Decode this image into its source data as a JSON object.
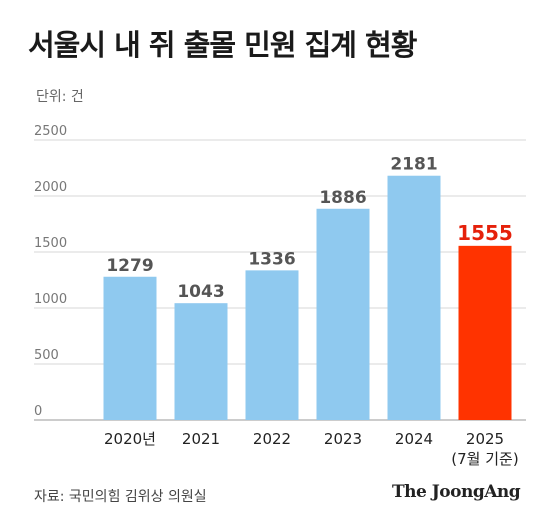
{
  "header": {
    "title": "서울시 내 쥐 출몰 민원 집계 현황",
    "unit": "단위: 건"
  },
  "footer": {
    "source": "자료: 국민의힘 김위상 의원실",
    "brand": "The JoongAng"
  },
  "colors": {
    "bar": "#8fc9ef",
    "highlight": "#ff3300",
    "highlight_text": "#e5210b"
  },
  "chart_data": {
    "type": "bar",
    "categories": [
      "2020년",
      "2021",
      "2022",
      "2023",
      "2024",
      "2025"
    ],
    "category_sublabels": [
      "",
      "",
      "",
      "",
      "",
      "(7월 기준)"
    ],
    "values": [
      1279,
      1043,
      1336,
      1886,
      2181,
      1555
    ],
    "highlight_index": 5,
    "yticks": [
      0,
      500,
      1000,
      1500,
      2000,
      2500
    ],
    "ylim": [
      0,
      2500
    ],
    "grid": true
  }
}
